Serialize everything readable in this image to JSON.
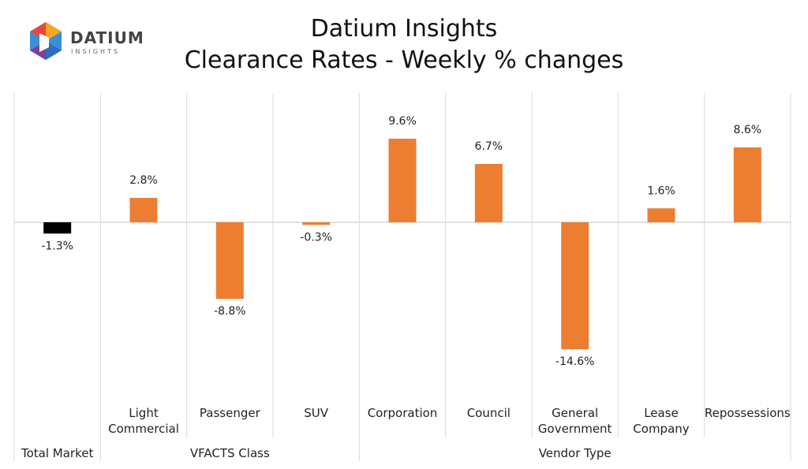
{
  "logo": {
    "name": "DATIUM",
    "tagline": "INSIGHTS"
  },
  "chart_data": {
    "type": "bar",
    "title": "Datium Insights",
    "subtitle": "Clearance Rates - Weekly % changes",
    "categories": [
      null,
      "Light Commercial",
      "Passenger",
      "SUV",
      "Corporation",
      "Council",
      "General Government",
      "Lease Company",
      "Repossessions"
    ],
    "groups": [
      "Total Market",
      "VFACTS Class",
      "VFACTS Class",
      "VFACTS Class",
      "Vendor Type",
      "Vendor Type",
      "Vendor Type",
      "Vendor Type",
      "Vendor Type"
    ],
    "values": [
      -1.3,
      2.8,
      -8.8,
      -0.3,
      9.6,
      6.7,
      -14.6,
      1.6,
      8.6
    ],
    "value_labels": [
      "-1.3%",
      "2.8%",
      "-8.8%",
      "-0.3%",
      "9.6%",
      "6.7%",
      "-14.6%",
      "1.6%",
      "8.6%"
    ],
    "colors": [
      "#000000",
      "#ed7d31",
      "#ed7d31",
      "#ed7d31",
      "#ed7d31",
      "#ed7d31",
      "#ed7d31",
      "#ed7d31",
      "#ed7d31"
    ],
    "ylim": [
      -20.2,
      14.85
    ]
  }
}
